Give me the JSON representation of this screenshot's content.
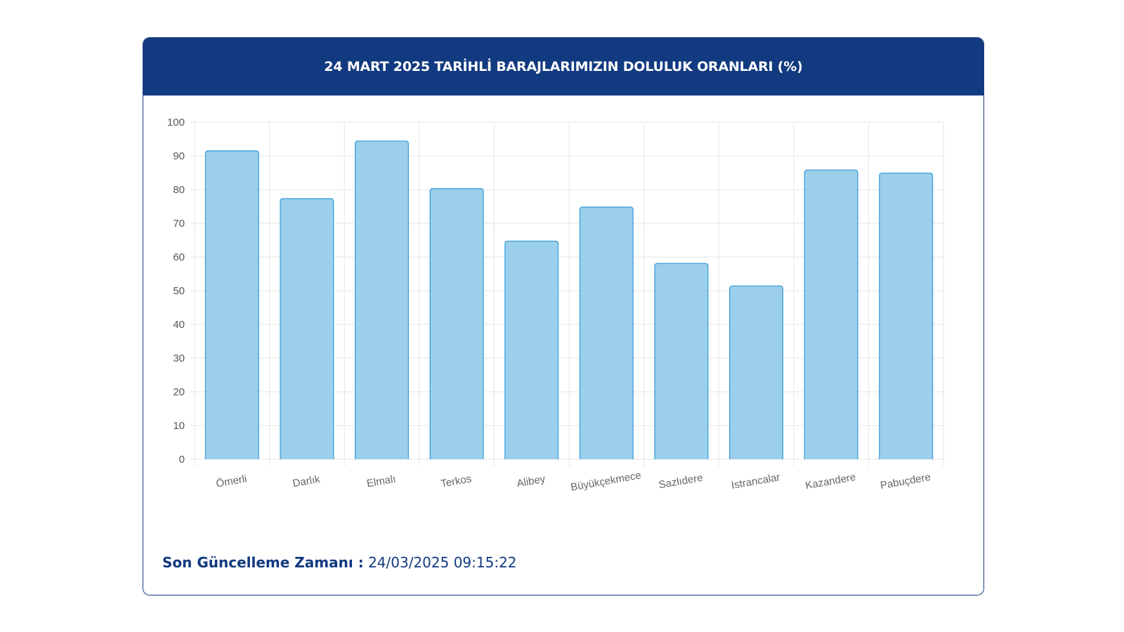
{
  "header": {
    "title": "24 MART 2025 TARİHLİ BARAJLARIMIZIN DOLULUK ORANLARI (%)"
  },
  "footer": {
    "label": "Son Güncelleme Zamanı :",
    "value": "24/03/2025 09:15:22"
  },
  "colors": {
    "header_bg": "#123a80",
    "bar_fill": "#9ccfeb",
    "bar_stroke": "#3aa0d8",
    "grid": "#e5e5e5"
  },
  "chart_data": {
    "type": "bar",
    "title": "24 MART 2025 TARİHLİ BARAJLARIMIZIN DOLULUK ORANLARI (%)",
    "categories": [
      "Ömerli",
      "Darlık",
      "Elmalı",
      "Terkos",
      "Alibey",
      "Büyükçekmece",
      "Sazlıdere",
      "Istrancalar",
      "Kazandere",
      "Pabuçdere"
    ],
    "values": [
      91.5,
      77.3,
      94.4,
      80.3,
      64.7,
      74.8,
      58.1,
      51.4,
      85.8,
      84.9
    ],
    "yticks": [
      0,
      10,
      20,
      30,
      40,
      50,
      60,
      70,
      80,
      90,
      100
    ],
    "ylim": [
      0,
      100
    ],
    "grid": true,
    "xlabel": "",
    "ylabel": ""
  }
}
